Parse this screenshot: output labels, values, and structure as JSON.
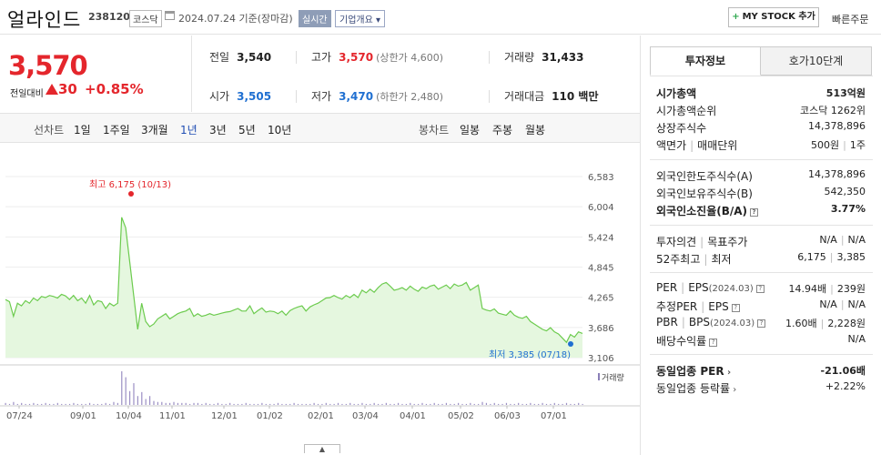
{
  "header": {
    "name": "얼라인드",
    "code": "238120",
    "market": "코스닥",
    "date": "2024.07.24 기준(장마감)",
    "realtime": "실시간",
    "company_info": "기업개요",
    "mystock": "MY STOCK 추가",
    "quick_order": "빠른주문"
  },
  "price": {
    "current": "3,570",
    "change_label": "전일대비",
    "change": "30",
    "change_pct": "+0.85%"
  },
  "stats": {
    "prev_label": "전일",
    "prev": "3,540",
    "high_label": "고가",
    "high": "3,570",
    "upper_limit": "(상한가 4,600)",
    "volume_label": "거래량",
    "volume": "31,433",
    "open_label": "시가",
    "open": "3,505",
    "low_label": "저가",
    "low": "3,470",
    "lower_limit": "(하한가 2,480)",
    "amount_label": "거래대금",
    "amount": "110 백만"
  },
  "periods": {
    "line_label": "선차트",
    "items": [
      "1일",
      "1주일",
      "3개월",
      "1년",
      "3년",
      "5년",
      "10년"
    ],
    "active": "1년",
    "candle_label": "봉차트",
    "candle_items": [
      "일봉",
      "주봉",
      "월봉"
    ]
  },
  "chart_data": {
    "type": "area",
    "y_ticks": [
      "6,583",
      "6,004",
      "5,424",
      "4,845",
      "4,265",
      "3,686",
      "3,106"
    ],
    "ylim": [
      3106,
      6583
    ],
    "x_ticks": [
      "07/24",
      "09/01",
      "10/04",
      "11/01",
      "12/01",
      "01/02",
      "02/01",
      "03/04",
      "04/01",
      "05/02",
      "06/03",
      "07/01"
    ],
    "high_annotation": "최고 6,175 (10/13)",
    "low_annotation": "최저 3,385 (07/18)",
    "volume_label": "거래량",
    "values": [
      4220,
      4180,
      3900,
      4150,
      4100,
      4200,
      4150,
      4250,
      4200,
      4280,
      4260,
      4300,
      4280,
      4250,
      4320,
      4290,
      4220,
      4300,
      4200,
      4250,
      4150,
      4300,
      4120,
      4200,
      4180,
      4050,
      4150,
      4100,
      4150,
      5800,
      5600,
      4950,
      4300,
      3650,
      4150,
      3800,
      3700,
      3750,
      3850,
      3900,
      3950,
      3850,
      3900,
      3950,
      3980,
      4000,
      4050,
      3900,
      3950,
      3900,
      3920,
      3950,
      3920,
      3940,
      3960,
      3980,
      3990,
      4020,
      4050,
      4000,
      4000,
      4100,
      3950,
      4010,
      4060,
      3980,
      4000,
      3990,
      3950,
      4000,
      3920,
      4010,
      4050,
      4080,
      4100,
      4000,
      4080,
      4120,
      4150,
      4200,
      4250,
      4260,
      4300,
      4260,
      4230,
      4300,
      4260,
      4320,
      4260,
      4400,
      4350,
      4420,
      4360,
      4450,
      4520,
      4550,
      4480,
      4400,
      4420,
      4450,
      4400,
      4480,
      4420,
      4380,
      4460,
      4430,
      4480,
      4500,
      4420,
      4460,
      4500,
      4430,
      4520,
      4480,
      4500,
      4550,
      4400,
      4450,
      4500,
      4050,
      4020,
      4000,
      4040,
      3960,
      3940,
      3920,
      4000,
      3920,
      3880,
      3860,
      3900,
      3800,
      3750,
      3700,
      3650,
      3620,
      3680,
      3600,
      3560,
      3480,
      3400,
      3550,
      3500,
      3600,
      3570
    ],
    "volumes": [
      2,
      1,
      3,
      1,
      2,
      1,
      1,
      2,
      1,
      1,
      2,
      1,
      1,
      2,
      1,
      1,
      1,
      2,
      1,
      1,
      1,
      2,
      1,
      1,
      1,
      2,
      1,
      3,
      2,
      34,
      28,
      14,
      22,
      9,
      13,
      6,
      9,
      4,
      3,
      3,
      2,
      2,
      3,
      2,
      2,
      2,
      1,
      2,
      2,
      1,
      2,
      1,
      1,
      2,
      1,
      1,
      2,
      1,
      1,
      1,
      2,
      1,
      1,
      1,
      2,
      1,
      1,
      1,
      2,
      1,
      1,
      1,
      2,
      1,
      1,
      1,
      1,
      2,
      1,
      1,
      2,
      1,
      1,
      2,
      1,
      1,
      2,
      1,
      1,
      2,
      1,
      1,
      2,
      1,
      1,
      2,
      1,
      1,
      2,
      1,
      1,
      2,
      1,
      1,
      2,
      1,
      1,
      2,
      1,
      1,
      2,
      1,
      1,
      2,
      1,
      1,
      2,
      1,
      1,
      3,
      2,
      1,
      2,
      1,
      1,
      2,
      1,
      1,
      2,
      1,
      1,
      2,
      1,
      1,
      2,
      1,
      1,
      2,
      1,
      1,
      2,
      1,
      1,
      2,
      1
    ]
  },
  "tabs": {
    "info": "투자정보",
    "orderbook": "호가10단계"
  },
  "info": {
    "mcap_label": "시가총액",
    "mcap": "513억원",
    "rank_label": "시가총액순위",
    "rank": "코스닥 1262위",
    "shares_label": "상장주식수",
    "shares": "14,378,896",
    "par_label": "액면가",
    "unit_label": "매매단위",
    "par": "500원",
    "unit": "1주",
    "fl_limit_label": "외국인한도주식수(A)",
    "fl_limit": "14,378,896",
    "fl_hold_label": "외국인보유주식수(B)",
    "fl_hold": "542,350",
    "fl_ratio_label": "외국인소진율(B/A)",
    "fl_ratio": "3.77%",
    "opinion_label": "투자의견",
    "target_label": "목표주가",
    "opinion": "N/A",
    "target": "N/A",
    "wk52_label": "52주최고",
    "wk52_low_label": "최저",
    "wk52_high": "6,175",
    "wk52_low": "3,385",
    "per_label": "PER",
    "eps_label": "EPS",
    "eps_date": "(2024.03)",
    "per": "14.94배",
    "eps": "239원",
    "est_per_label": "추정PER",
    "est_eps_label": "EPS",
    "est_per": "N/A",
    "est_eps": "N/A",
    "pbr_label": "PBR",
    "bps_label": "BPS",
    "bps_date": "(2024.03)",
    "pbr": "1.60배",
    "bps": "2,228원",
    "div_label": "배당수익률",
    "div": "N/A",
    "ind_per_label": "동일업종 PER",
    "ind_per": "-21.06배",
    "ind_chg_label": "동일업종 등락률",
    "ind_chg": "+2.22%"
  }
}
